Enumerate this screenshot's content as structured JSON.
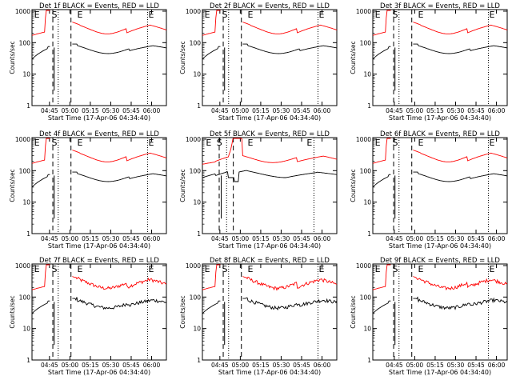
{
  "chart_data": {
    "type": "line",
    "layout": "3x3 grid of log-scale time series",
    "series_colors": {
      "Events": "#000000",
      "LLD": "#ff0000"
    },
    "y_axis": {
      "label": "Counts/sec",
      "scale": "log",
      "range": [
        1,
        1000
      ],
      "tick_labels": [
        "1",
        "10",
        "100",
        "1000"
      ]
    },
    "x_axis": {
      "label": "Start Time (17-Apr-06 04:34:40)",
      "tick_labels": [
        "04:45",
        "05:00",
        "05:15",
        "05:30",
        "05:45",
        "06:00"
      ]
    },
    "panels": [
      {
        "title": "Det 1f BLACK = Events, RED = LLD",
        "markers": [
          "E",
          "S",
          "E",
          "E"
        ]
      },
      {
        "title": "Det 2f BLACK = Events, RED = LLD",
        "markers": [
          "E",
          "S",
          "E",
          "E"
        ]
      },
      {
        "title": "Det 3f BLACK = Events, RED = LLD",
        "markers": [
          "E",
          "S",
          "E",
          "E"
        ]
      },
      {
        "title": "Det 4f BLACK = Events, RED = LLD",
        "markers": [
          "E",
          "S",
          "E",
          "E"
        ]
      },
      {
        "title": "Det 5f BLACK = Events, RED = LLD",
        "markers": [
          "E",
          "S",
          "E",
          "E"
        ]
      },
      {
        "title": "Det 6f BLACK = Events, RED = LLD",
        "markers": [
          "E",
          "S",
          "E",
          "E"
        ]
      },
      {
        "title": "Det 7f BLACK = Events, RED = LLD",
        "markers": [
          "E",
          "S",
          "E",
          "E"
        ]
      },
      {
        "title": "Det 8f BLACK = Events, RED = LLD",
        "markers": [
          "E",
          "S",
          "E",
          "E"
        ]
      },
      {
        "title": "Det 9f BLACK = Events, RED = LLD",
        "markers": [
          "E",
          "S",
          "E",
          "E"
        ]
      }
    ],
    "series": [
      {
        "name": "Events",
        "color": "#000000",
        "typical_range": [
          40,
          100
        ]
      },
      {
        "name": "LLD",
        "color": "#ff0000",
        "typical_range": [
          150,
          400
        ]
      }
    ],
    "grid": false,
    "legend": "in titles"
  }
}
